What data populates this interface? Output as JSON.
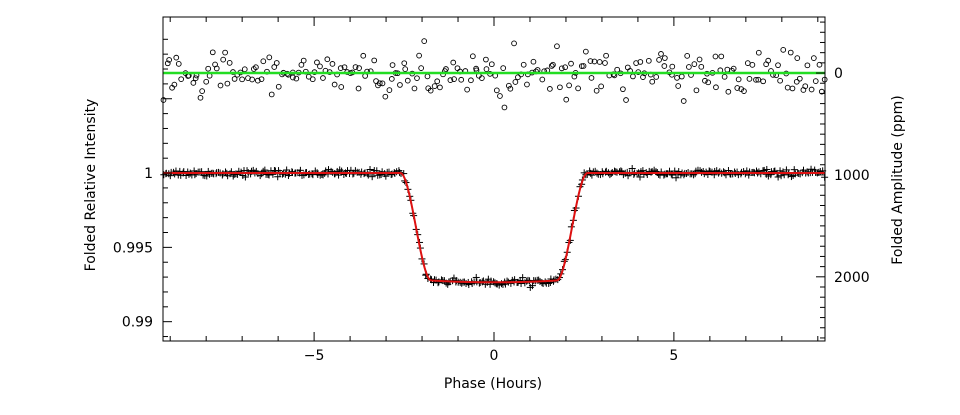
{
  "chart_data": {
    "type": "scatter",
    "xlabel": "Phase (Hours)",
    "ylabel_left": "Folded Relative Intensity",
    "ylabel_right": "Folded Amplitude (ppm)",
    "xlim": [
      -9.2,
      9.2
    ],
    "ylim_left": [
      0.9887,
      1.0105
    ],
    "ylim_right": [
      -550,
      2630
    ],
    "x_ticks": [
      -5,
      0,
      5
    ],
    "x_tick_labels": [
      "−5",
      "0",
      "5"
    ],
    "y_left_ticks": [
      0.99,
      0.995,
      1
    ],
    "y_left_tick_labels": [
      "0.99",
      "0.995",
      "1"
    ],
    "y_right_ticks": [
      0,
      1000,
      2000
    ],
    "y_right_tick_labels": [
      "0",
      "1000",
      "2000"
    ],
    "grid": false,
    "transit_model": {
      "baseline": 1.0,
      "depth": 0.00735,
      "total_half_duration_hours": 2.6,
      "ingress_hours": 0.85,
      "limb_darkening": 0.55
    },
    "series": [
      {
        "marker": "plus",
        "axis": "left",
        "x_range": [
          -9.2,
          9.2
        ],
        "count": 420,
        "scatter_sigma": 0.00011,
        "color": "#000000"
      },
      {
        "marker": "line",
        "axis": "left",
        "color": "#dd1111"
      },
      {
        "marker": "circle",
        "axis": "right",
        "x_range": [
          -9.2,
          9.2
        ],
        "count": 260,
        "center": 0,
        "scatter_sigma": 110,
        "color": "#000000"
      },
      {
        "marker": "line",
        "axis": "right",
        "value": 0,
        "color": "#22dd22"
      }
    ]
  }
}
